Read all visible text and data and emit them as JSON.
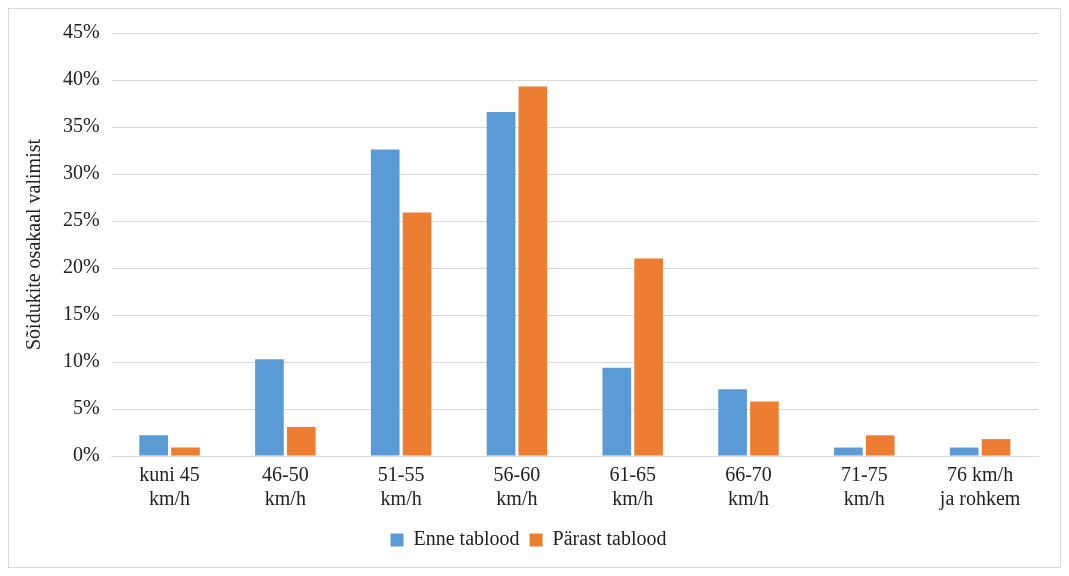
{
  "chart_data": {
    "type": "bar",
    "ylabel": "Sõidukite osakaal valimist",
    "categories": [
      "kuni 45 km/h",
      "46-50 km/h",
      "51-55 km/h",
      "56-60 km/h",
      "61-65 km/h",
      "66-70 km/h",
      "71-75 km/h",
      "76 km/h ja rohkem"
    ],
    "series": [
      {
        "name": "Enne tablood",
        "color": "#5b9bd5",
        "values": [
          2.2,
          10.3,
          32.6,
          36.6,
          9.4,
          7.1,
          0.9,
          0.9
        ]
      },
      {
        "name": "Pärast tablood",
        "color": "#ed7d31",
        "values": [
          0.9,
          3.1,
          25.9,
          39.3,
          21.0,
          5.8,
          2.2,
          1.8
        ]
      }
    ],
    "ylim": [
      0,
      45
    ],
    "yticks": [
      {
        "value": 0,
        "label": "0%"
      },
      {
        "value": 5,
        "label": "5%"
      },
      {
        "value": 10,
        "label": "10%"
      },
      {
        "value": 15,
        "label": "15%"
      },
      {
        "value": 20,
        "label": "20%"
      },
      {
        "value": 25,
        "label": "25%"
      },
      {
        "value": 30,
        "label": "30%"
      },
      {
        "value": 35,
        "label": "35%"
      },
      {
        "value": 40,
        "label": "40%"
      },
      {
        "value": 45,
        "label": "45%"
      }
    ],
    "grid": "y",
    "legend": "bottom"
  }
}
